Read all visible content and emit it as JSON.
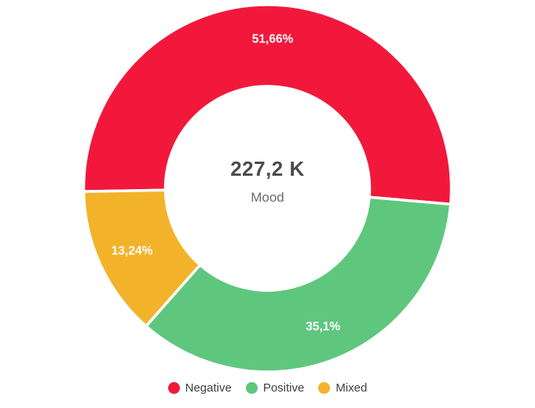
{
  "chart_data": {
    "type": "donut",
    "center": {
      "value": "227,2 K",
      "label": "Mood"
    },
    "series": [
      {
        "label": "Negative",
        "value": 51.66,
        "display": "51,66%",
        "color": "#F2183C"
      },
      {
        "label": "Positive",
        "value": 35.1,
        "display": "35,1%",
        "color": "#5EC77D"
      },
      {
        "label": "Mixed",
        "value": 13.24,
        "display": "13,24%",
        "color": "#F2B32B"
      }
    ],
    "start_angle_deg": 179,
    "legend_position": "bottom",
    "slice_label_color": "#FFFFFF"
  }
}
